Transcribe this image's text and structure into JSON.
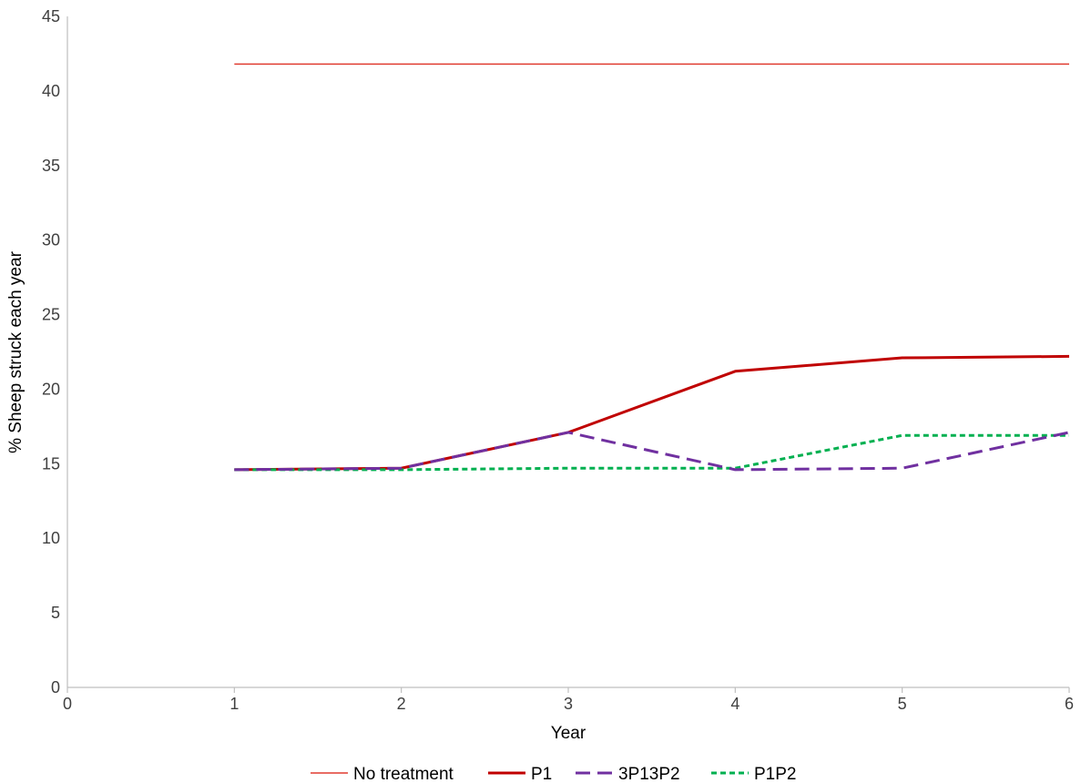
{
  "chart_data": {
    "type": "line",
    "title": "",
    "xlabel": "Year",
    "ylabel": "% Sheep struck each year",
    "xlim": [
      0,
      6
    ],
    "ylim": [
      0,
      45
    ],
    "x_ticks": [
      "0",
      "1",
      "2",
      "3",
      "4",
      "5",
      "6"
    ],
    "y_ticks": [
      "0",
      "5",
      "10",
      "15",
      "20",
      "25",
      "30",
      "35",
      "40",
      "45"
    ],
    "grid": false,
    "legend_position": "bottom",
    "x": [
      1,
      2,
      3,
      4,
      5,
      6
    ],
    "series": [
      {
        "name": "No treatment",
        "values": [
          41.8,
          41.8,
          41.8,
          41.8,
          41.8,
          41.8
        ],
        "color": "#e03c31",
        "style": "solid-thin"
      },
      {
        "name": "P1",
        "values": [
          14.6,
          14.7,
          17.1,
          21.2,
          22.1,
          22.2
        ],
        "color": "#c00000",
        "style": "solid-thick"
      },
      {
        "name": "3P13P2",
        "values": [
          14.6,
          14.7,
          17.1,
          14.6,
          14.7,
          17.1
        ],
        "color": "#7030a0",
        "style": "long-dash"
      },
      {
        "name": "P1P2",
        "values": [
          14.6,
          14.6,
          14.7,
          14.7,
          16.9,
          16.9
        ],
        "color": "#00b050",
        "style": "short-dash"
      }
    ]
  }
}
